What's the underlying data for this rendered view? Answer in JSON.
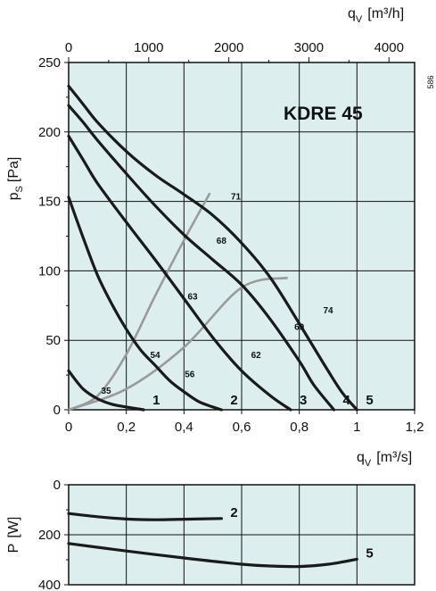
{
  "chart_data": [
    {
      "type": "line",
      "title": "KDRE  45",
      "code": "586",
      "xlabel": "q",
      "xlabel_sub": "V",
      "xlabel_unit": "[m³/s]",
      "x2label": "q",
      "x2label_sub": "V",
      "x2label_unit": "[m³/h]",
      "ylabel": "p",
      "ylabel_sub": "S",
      "ylabel_unit": "[Pa]",
      "xlim": [
        0,
        1.2
      ],
      "ylim": [
        0,
        250
      ],
      "x2lim": [
        0,
        4320
      ],
      "x_ticks": [
        "0",
        "0,2",
        "0,4",
        "0,6",
        "0,8",
        "1",
        "1,2"
      ],
      "x_tick_values": [
        0,
        0.2,
        0.4,
        0.6,
        0.8,
        1.0,
        1.2
      ],
      "x2_ticks": [
        "0",
        "1000",
        "2000",
        "3000",
        "4000"
      ],
      "x2_tick_values": [
        0,
        1000,
        2000,
        3000,
        4000
      ],
      "y_ticks": [
        "0",
        "50",
        "100",
        "150",
        "200",
        "250"
      ],
      "y_tick_values": [
        0,
        50,
        100,
        150,
        200,
        250
      ],
      "grid": true,
      "series": [
        {
          "name": "1",
          "x": [
            0,
            0.05,
            0.1,
            0.15,
            0.2,
            0.26
          ],
          "y": [
            28,
            15,
            8,
            4,
            2,
            0
          ]
        },
        {
          "name": "2",
          "x": [
            0,
            0.05,
            0.1,
            0.15,
            0.2,
            0.25,
            0.3,
            0.35,
            0.4,
            0.45,
            0.5,
            0.53
          ],
          "y": [
            153,
            124,
            97,
            76,
            58,
            43,
            32,
            21,
            13,
            6,
            2,
            0
          ]
        },
        {
          "name": "3",
          "x": [
            0,
            0.05,
            0.1,
            0.2,
            0.3,
            0.4,
            0.5,
            0.6,
            0.7,
            0.77
          ],
          "y": [
            197,
            180,
            163,
            135,
            108,
            80,
            52,
            28,
            10,
            0
          ]
        },
        {
          "name": "4",
          "x": [
            0,
            0.05,
            0.1,
            0.2,
            0.3,
            0.4,
            0.5,
            0.6,
            0.7,
            0.8,
            0.85,
            0.92
          ],
          "y": [
            219,
            207,
            194,
            170,
            147,
            126,
            108,
            90,
            65,
            35,
            18,
            0
          ]
        },
        {
          "name": "5",
          "x": [
            0,
            0.05,
            0.1,
            0.2,
            0.3,
            0.4,
            0.5,
            0.6,
            0.7,
            0.8,
            0.9,
            0.95,
            1.0
          ],
          "y": [
            233,
            220,
            207,
            186,
            169,
            155,
            140,
            120,
            95,
            62,
            28,
            12,
            0
          ]
        }
      ],
      "system_curves": [
        {
          "x": [
            0,
            0.1,
            0.2,
            0.3,
            0.4,
            0.49
          ],
          "y": [
            0,
            10,
            40,
            82,
            122,
            156
          ]
        },
        {
          "x": [
            0,
            0.2,
            0.4,
            0.6,
            0.76
          ],
          "y": [
            0,
            15,
            45,
            88,
            95
          ]
        }
      ],
      "annotations": [
        {
          "text": "35",
          "x": 0.13,
          "y": 14
        },
        {
          "text": "54",
          "x": 0.3,
          "y": 40
        },
        {
          "text": "56",
          "x": 0.42,
          "y": 26
        },
        {
          "text": "63",
          "x": 0.43,
          "y": 82
        },
        {
          "text": "68",
          "x": 0.53,
          "y": 122
        },
        {
          "text": "71",
          "x": 0.58,
          "y": 154
        },
        {
          "text": "62",
          "x": 0.65,
          "y": 40
        },
        {
          "text": "69",
          "x": 0.8,
          "y": 60
        },
        {
          "text": "74",
          "x": 0.9,
          "y": 72
        }
      ]
    },
    {
      "type": "line",
      "xlabel": "",
      "ylabel": "P",
      "ylabel_unit": "[W]",
      "xlim": [
        0,
        1.2
      ],
      "ylim": [
        0,
        400
      ],
      "y_ticks": [
        "0",
        "200",
        "400"
      ],
      "y_tick_values": [
        0,
        200,
        400
      ],
      "grid": true,
      "series": [
        {
          "name": "2",
          "x": [
            0,
            0.1,
            0.2,
            0.3,
            0.4,
            0.53
          ],
          "y": [
            115,
            128,
            137,
            140,
            138,
            135
          ]
        },
        {
          "name": "5",
          "x": [
            0,
            0.2,
            0.4,
            0.6,
            0.7,
            0.8,
            0.9,
            1.0
          ],
          "y": [
            235,
            265,
            293,
            318,
            325,
            327,
            318,
            298
          ]
        }
      ]
    }
  ]
}
